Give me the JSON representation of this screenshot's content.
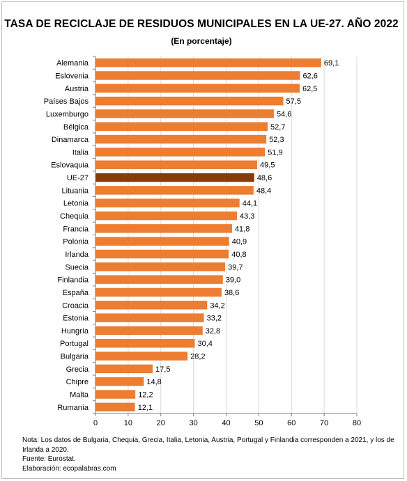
{
  "title": "TASA DE RECICLAJE DE RESIDUOS MUNICIPALES EN LA UE-27. AÑO 2022",
  "subtitle": "(En porcentaje)",
  "notes": {
    "note": "Nota: Los datos  de Bulgaria, Chequia, Grecia, Italia, Letonia, Austria, Portugal y Finlandia corresponden a 2021, y los de Irlanda a 2020.",
    "source": "Fuente: Eurostat.",
    "credit": "Elaboración: ecopalabras.com"
  },
  "chart_data": {
    "type": "bar",
    "orientation": "horizontal",
    "title": "TASA DE RECICLAJE DE RESIDUOS MUNICIPALES EN LA UE-27. AÑO 2022",
    "subtitle": "(En porcentaje)",
    "categories": [
      "Alemania",
      "Eslovenia",
      "Austria",
      "Países Bajos",
      "Luxemburgo",
      "Bélgica",
      "Dinamarca",
      "Italia",
      "Eslovaquia",
      "UE-27",
      "Lituania",
      "Letonia",
      "Chequia",
      "Francia",
      "Polonia",
      "Irlanda",
      "Suecia",
      "Finlandia",
      "España",
      "Croacia",
      "Estonia",
      "Hungría",
      "Portugal",
      "Bulgaria",
      "Grecia",
      "Chipre",
      "Malta",
      "Rumanía"
    ],
    "values": [
      69.1,
      62.6,
      62.5,
      57.5,
      54.6,
      52.7,
      52.3,
      51.9,
      49.5,
      48.6,
      48.4,
      44.1,
      43.3,
      41.8,
      40.9,
      40.8,
      39.7,
      39.0,
      38.6,
      34.2,
      33.2,
      32.8,
      30.4,
      28.2,
      17.5,
      14.8,
      12.2,
      12.1
    ],
    "value_labels": [
      "69,1",
      "62,6",
      "62,5",
      "57,5",
      "54,6",
      "52,7",
      "52,3",
      "51,9",
      "49,5",
      "48,6",
      "48,4",
      "44,1",
      "43,3",
      "41,8",
      "40,9",
      "40,8",
      "39,7",
      "39,0",
      "38,6",
      "34,2",
      "33,2",
      "32,8",
      "30,4",
      "28,2",
      "17,5",
      "14,8",
      "12,2",
      "12,1"
    ],
    "highlight_category": "UE-27",
    "xlim": [
      0,
      80
    ],
    "xticks": [
      0,
      10,
      20,
      30,
      40,
      50,
      60,
      70,
      80
    ],
    "grid": true,
    "colors": {
      "bar": "#ED7D31",
      "highlight": "#843C0C",
      "grid": "#d9d9d9",
      "axis": "#7f7f7f"
    }
  }
}
